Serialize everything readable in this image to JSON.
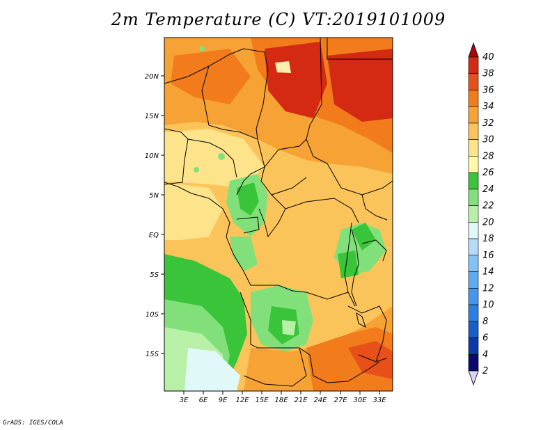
{
  "title": "2m Temperature (C) VT:2019101009",
  "credit": "GrADS: IGES/COLA",
  "map": {
    "lat_ticks": [
      "20N",
      "15N",
      "10N",
      "5N",
      "EQ",
      "5S",
      "10S",
      "15S"
    ],
    "lon_ticks": [
      "3E",
      "6E",
      "9E",
      "12E",
      "15E",
      "18E",
      "21E",
      "24E",
      "27E",
      "30E",
      "33E"
    ]
  },
  "colorbar": {
    "levels": [
      "2",
      "4",
      "6",
      "8",
      "10",
      "12",
      "14",
      "16",
      "18",
      "20",
      "22",
      "24",
      "26",
      "28",
      "30",
      "32",
      "34",
      "36",
      "38",
      "40"
    ],
    "colors": [
      "#0a0a6e",
      "#0b3aa8",
      "#1560c8",
      "#2b7fe0",
      "#4596ea",
      "#5fabf0",
      "#82c2f5",
      "#b4dcf8",
      "#e0f8f8",
      "#b8f0a8",
      "#82e07a",
      "#3ac43a",
      "#fffaa8",
      "#fde38a",
      "#fbc45a",
      "#f7a234",
      "#f27c1c",
      "#e8501a",
      "#d42a14",
      "#b80a0a"
    ],
    "under_color": "#d8d4f0",
    "over_color": "#a80808"
  }
}
